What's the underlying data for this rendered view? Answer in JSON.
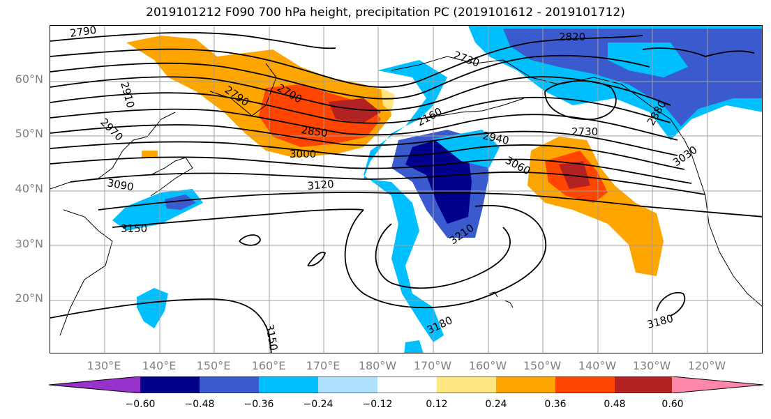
{
  "title": "2019101212 F090 700 hPa height, precipitation PC (2019101612 - 2019101712)",
  "lat_labels": [
    "60°N",
    "50°N",
    "40°N",
    "30°N",
    "20°N"
  ],
  "lon_labels": [
    "130°E",
    "140°E",
    "150°E",
    "160°E",
    "170°E",
    "180°W",
    "170°W",
    "160°W",
    "150°W",
    "140°W",
    "130°W",
    "120°W"
  ],
  "contour_labels": [
    "2790",
    "2820",
    "2730",
    "2910",
    "2790",
    "2700",
    "2850",
    "2970",
    "3000",
    "2160",
    "2940",
    "2730",
    "2880",
    "3060",
    "3030",
    "3090",
    "3120",
    "3150",
    "3210",
    "3180",
    "3150",
    "3180"
  ],
  "colorbar": {
    "ticks": [
      "−0.60",
      "−0.48",
      "−0.36",
      "−0.24",
      "−0.12",
      "0.12",
      "0.24",
      "0.36",
      "0.48",
      "0.60"
    ],
    "colors": [
      "#9932cc",
      "#00008b",
      "#3a5acd",
      "#00bfff",
      "#b0e2ff",
      "#ffffff",
      "#ffe680",
      "#ffa500",
      "#ff4500",
      "#b22222",
      "#ff88aa"
    ]
  },
  "colors": {
    "neg_strong": "#00008b",
    "neg_mid": "#3a5acd",
    "neg_light": "#00bfff",
    "neg_pale": "#b0e2ff",
    "pos_pale": "#ffe680",
    "pos_mid": "#ffa500",
    "pos_strong": "#ff4500",
    "pos_max": "#b22222"
  }
}
